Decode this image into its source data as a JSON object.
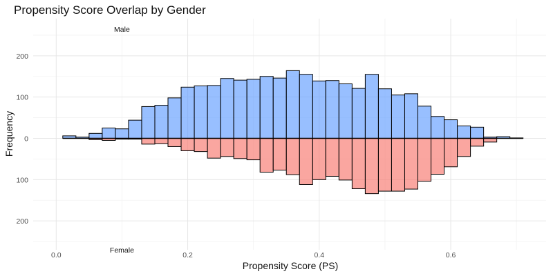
{
  "chart_data": {
    "type": "bar",
    "title": "Propensity Score Overlap by Gender",
    "xlabel": "Propensity Score (PS)",
    "ylabel": "Frequency",
    "xlim": [
      -0.035,
      0.745
    ],
    "ylim": [
      -270,
      290
    ],
    "x_ticks": [
      0.0,
      0.2,
      0.4,
      0.6
    ],
    "x_tick_labels": [
      "0.0",
      "0.2",
      "0.4",
      "0.6"
    ],
    "y_ticks": [
      200,
      100,
      0,
      -100,
      -200
    ],
    "y_tick_labels": [
      "200",
      "100",
      "0",
      "100",
      "200"
    ],
    "grid": true,
    "bin_width": 0.02,
    "bin_starts": [
      0.01,
      0.03,
      0.05,
      0.07,
      0.09,
      0.11,
      0.13,
      0.15,
      0.17,
      0.19,
      0.21,
      0.23,
      0.25,
      0.27,
      0.29,
      0.31,
      0.33,
      0.35,
      0.37,
      0.39,
      0.41,
      0.43,
      0.45,
      0.47,
      0.49,
      0.51,
      0.53,
      0.55,
      0.57,
      0.59,
      0.61,
      0.63,
      0.65,
      0.67,
      0.69
    ],
    "series": [
      {
        "name": "Male",
        "direction": "up",
        "color": "#619CFF",
        "values": [
          6,
          3,
          12,
          25,
          23,
          44,
          77,
          80,
          98,
          124,
          127,
          128,
          145,
          141,
          143,
          150,
          146,
          164,
          155,
          139,
          140,
          132,
          121,
          155,
          120,
          105,
          108,
          78,
          53,
          45,
          30,
          27,
          3,
          4,
          1
        ]
      },
      {
        "name": "Female",
        "direction": "down",
        "color": "#F8766D",
        "values": [
          0,
          0,
          3,
          5,
          2,
          2,
          14,
          13,
          20,
          30,
          32,
          48,
          44,
          49,
          52,
          82,
          77,
          88,
          112,
          100,
          92,
          101,
          122,
          134,
          128,
          128,
          123,
          104,
          87,
          69,
          44,
          19,
          9,
          0,
          0
        ]
      }
    ],
    "annotations": [
      {
        "text": "Male",
        "x": 0.1,
        "y": 265
      },
      {
        "text": "Female",
        "x": 0.1,
        "y": -270
      }
    ]
  }
}
